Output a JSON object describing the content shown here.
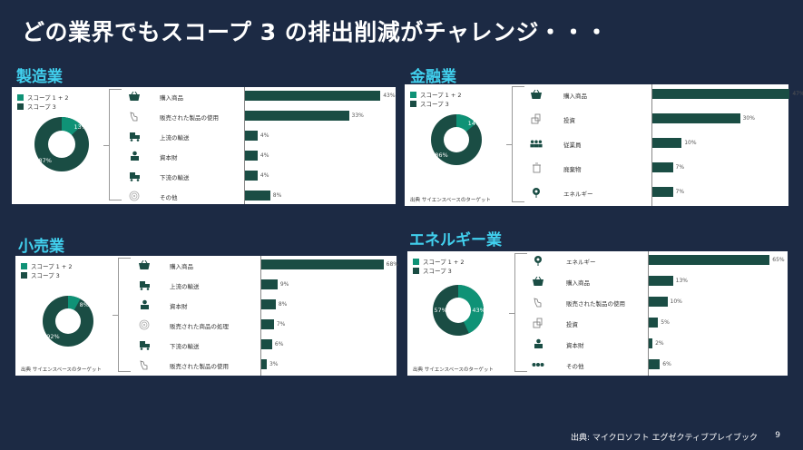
{
  "title": "どの業界でもスコープ 3 の排出削減がチャレンジ・・・",
  "legend": {
    "scope12": "スコープ 1 + 2",
    "scope3": "スコープ 3"
  },
  "colors": {
    "background": "#1c2a44",
    "section_title": "#41d0ee",
    "scope12": "#0f9276",
    "scope3": "#1a4d44",
    "bar": "#1a4d44"
  },
  "source_note": "出典 サイエンスベースのターゲット",
  "footer": {
    "source": "出典: マイクロソフト エグゼクティブプレイブック",
    "page_number": "9"
  },
  "chart_data": [
    {
      "type": "bar",
      "title": "製造業",
      "donut": {
        "scope12": 13,
        "scope3": 87,
        "scope12_label": "13%",
        "scope3_label": "87%"
      },
      "categories": [
        "購入商品",
        "販売された製品の使用",
        "上流の輸送",
        "資本財",
        "下流の輸送",
        "その他"
      ],
      "icons": [
        "basket-icon",
        "hand-pointer-icon",
        "truck-icon",
        "capital-goods-icon",
        "truck-icon",
        "other-icon"
      ],
      "values": [
        43,
        33,
        4,
        4,
        4,
        8
      ],
      "labels": [
        "43%",
        "33%",
        "4%",
        "4%",
        "4%",
        "8%"
      ]
    },
    {
      "type": "bar",
      "title": "金融業",
      "donut": {
        "scope12": 14,
        "scope3": 86,
        "scope12_label": "14%",
        "scope3_label": "86%"
      },
      "categories": [
        "購入商品",
        "投資",
        "従業員",
        "廃棄物",
        "エネルギー"
      ],
      "icons": [
        "basket-icon",
        "investment-icon",
        "employees-icon",
        "trash-icon",
        "energy-icon"
      ],
      "values": [
        47,
        30,
        10,
        7,
        7
      ],
      "labels": [
        "47%",
        "30%",
        "10%",
        "7%",
        "7%"
      ]
    },
    {
      "type": "bar",
      "title": "小売業",
      "donut": {
        "scope12": 8,
        "scope3": 92,
        "scope12_label": "8%",
        "scope3_label": "92%"
      },
      "categories": [
        "購入商品",
        "上流の輸送",
        "資本財",
        "販売された商品の処理",
        "下流の輸送",
        "販売された製品の使用"
      ],
      "icons": [
        "basket-icon",
        "truck-icon",
        "capital-goods-icon",
        "other-icon",
        "truck-icon",
        "hand-pointer-icon"
      ],
      "values": [
        68,
        9,
        8,
        7,
        6,
        3
      ],
      "labels": [
        "68%",
        "9%",
        "8%",
        "7%",
        "6%",
        "3%"
      ]
    },
    {
      "type": "bar",
      "title": "エネルギー業",
      "donut": {
        "scope12": 43,
        "scope3": 57,
        "scope12_label": "43%",
        "scope3_label": "57%"
      },
      "categories": [
        "エネルギー",
        "購入商品",
        "販売された製品の使用",
        "投資",
        "資本財",
        "その他"
      ],
      "icons": [
        "energy-icon",
        "basket-icon",
        "hand-pointer-icon",
        "investment-icon",
        "capital-goods-icon",
        "more-dots-icon"
      ],
      "values": [
        65,
        13,
        10,
        5,
        2,
        6
      ],
      "labels": [
        "65%",
        "13%",
        "10%",
        "5%",
        "2%",
        "6%"
      ]
    }
  ]
}
